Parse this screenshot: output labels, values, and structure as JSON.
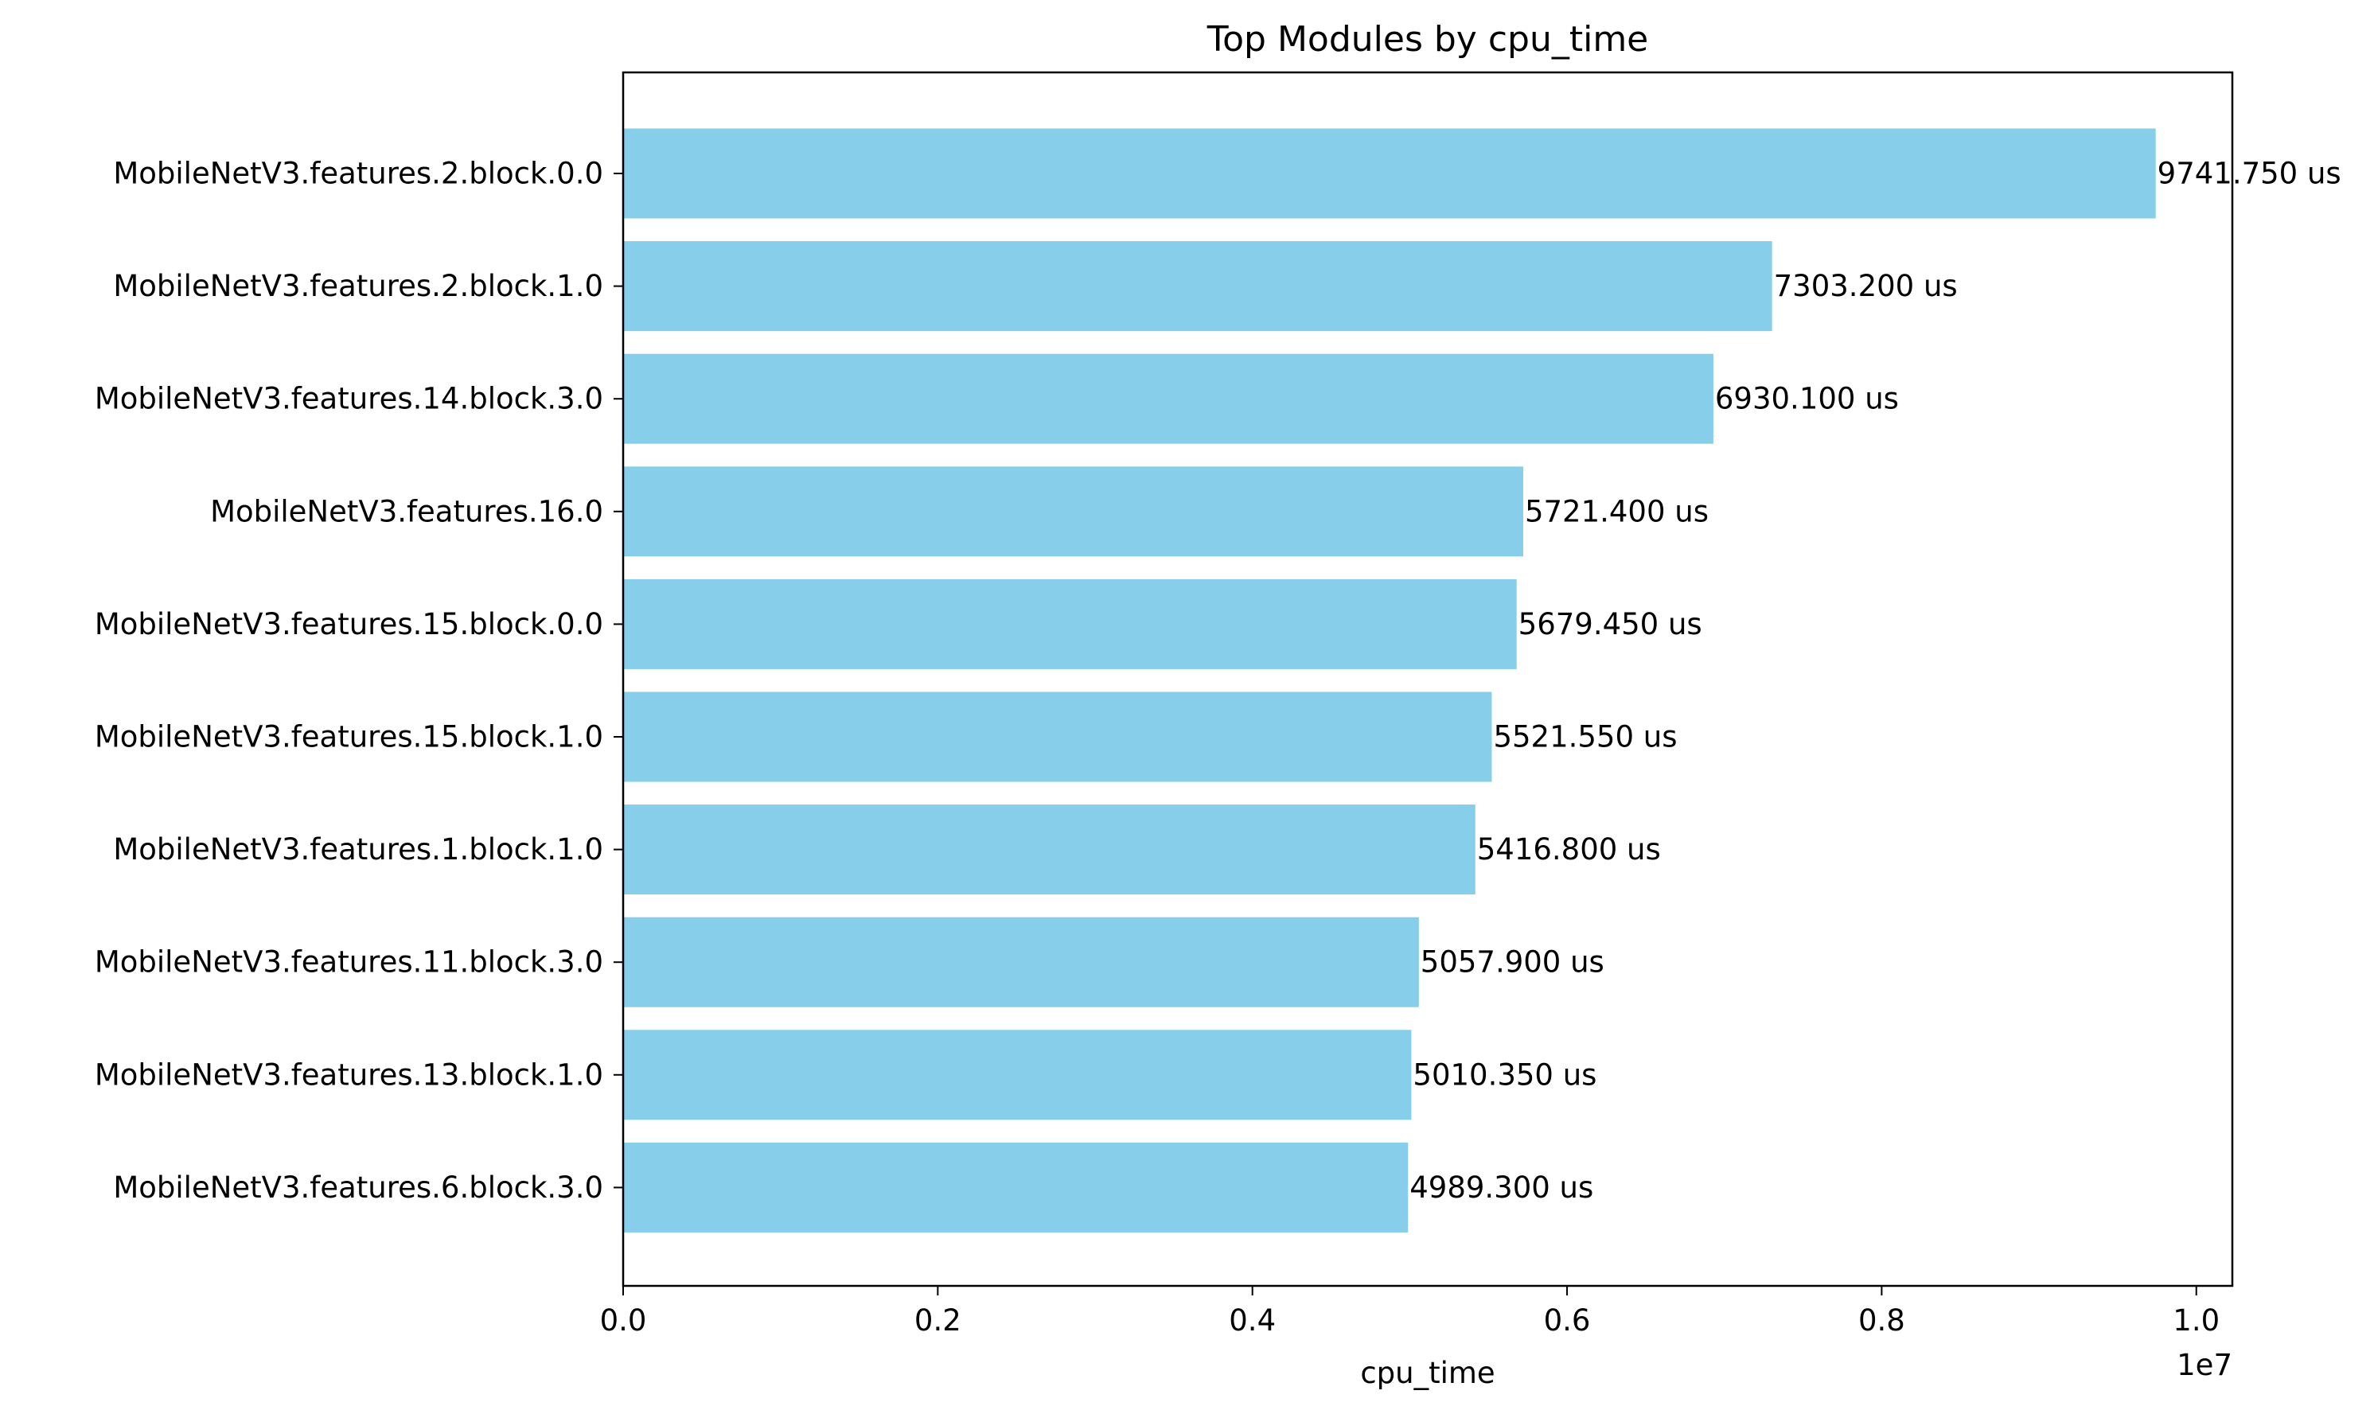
{
  "chart_data": {
    "type": "bar",
    "orientation": "horizontal",
    "title": "Top Modules by cpu_time",
    "xlabel": "cpu_time",
    "ylabel": "",
    "x_scale_label": "1e7",
    "categories": [
      "MobileNetV3.features.2.block.0.0",
      "MobileNetV3.features.2.block.1.0",
      "MobileNetV3.features.14.block.3.0",
      "MobileNetV3.features.16.0",
      "MobileNetV3.features.15.block.0.0",
      "MobileNetV3.features.15.block.1.0",
      "MobileNetV3.features.1.block.1.0",
      "MobileNetV3.features.11.block.3.0",
      "MobileNetV3.features.13.block.1.0",
      "MobileNetV3.features.6.block.3.0"
    ],
    "values": [
      9741750,
      7303200,
      6930100,
      5721400,
      5679450,
      5521550,
      5416800,
      5057900,
      5010350,
      4989300
    ],
    "data_labels": [
      "9741.750 us",
      "7303.200 us",
      "6930.100 us",
      "5721.400 us",
      "5679.450 us",
      "5521.550 us",
      "5416.800 us",
      "5057.900 us",
      "5010.350 us",
      "4989.300 us"
    ],
    "xticks": [
      0,
      2000000,
      4000000,
      6000000,
      8000000,
      10000000
    ],
    "xtick_labels": [
      "0.0",
      "0.2",
      "0.4",
      "0.6",
      "0.8",
      "1.0"
    ],
    "xlim": [
      0,
      10229000
    ],
    "grid": false,
    "legend": "none",
    "bar_color": "#87CEEB"
  }
}
